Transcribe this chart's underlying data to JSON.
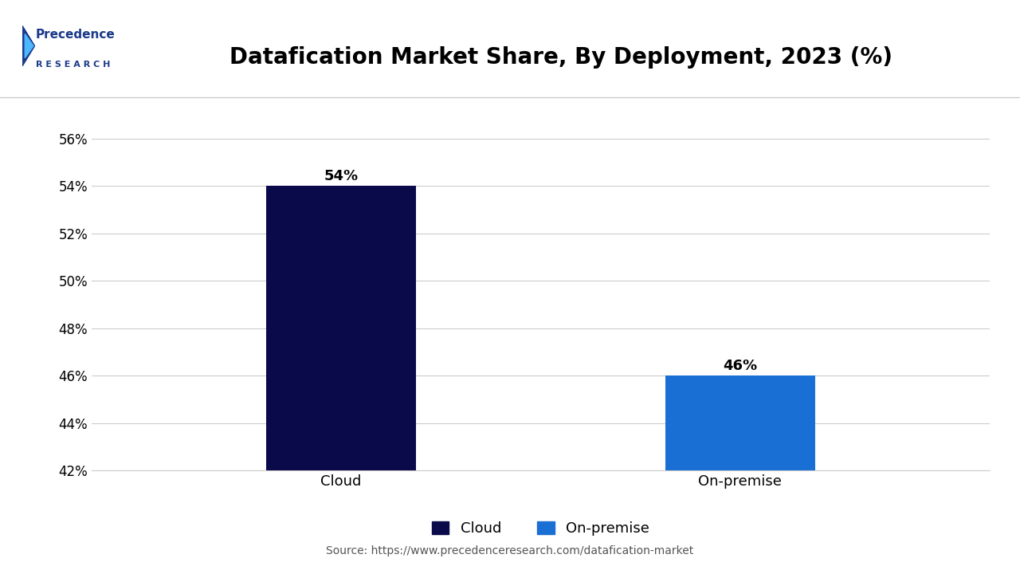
{
  "title": "Datafication Market Share, By Deployment, 2023 (%)",
  "categories": [
    "Cloud",
    "On-premise"
  ],
  "values": [
    54,
    46
  ],
  "bar_colors": [
    "#0a0a4a",
    "#1a6fd4"
  ],
  "ylim": [
    42,
    57
  ],
  "yticks": [
    42,
    44,
    46,
    48,
    50,
    52,
    54,
    56
  ],
  "bar_labels": [
    "54%",
    "46%"
  ],
  "legend_labels": [
    "Cloud",
    "On-premise"
  ],
  "source_text": "Source: https://www.precedenceresearch.com/datafication-market",
  "background_color": "#ffffff",
  "title_fontsize": 20,
  "tick_fontsize": 12,
  "label_fontsize": 13,
  "bar_width": 0.15,
  "x_positions": [
    0.3,
    0.7
  ],
  "xlim": [
    0.05,
    0.95
  ]
}
